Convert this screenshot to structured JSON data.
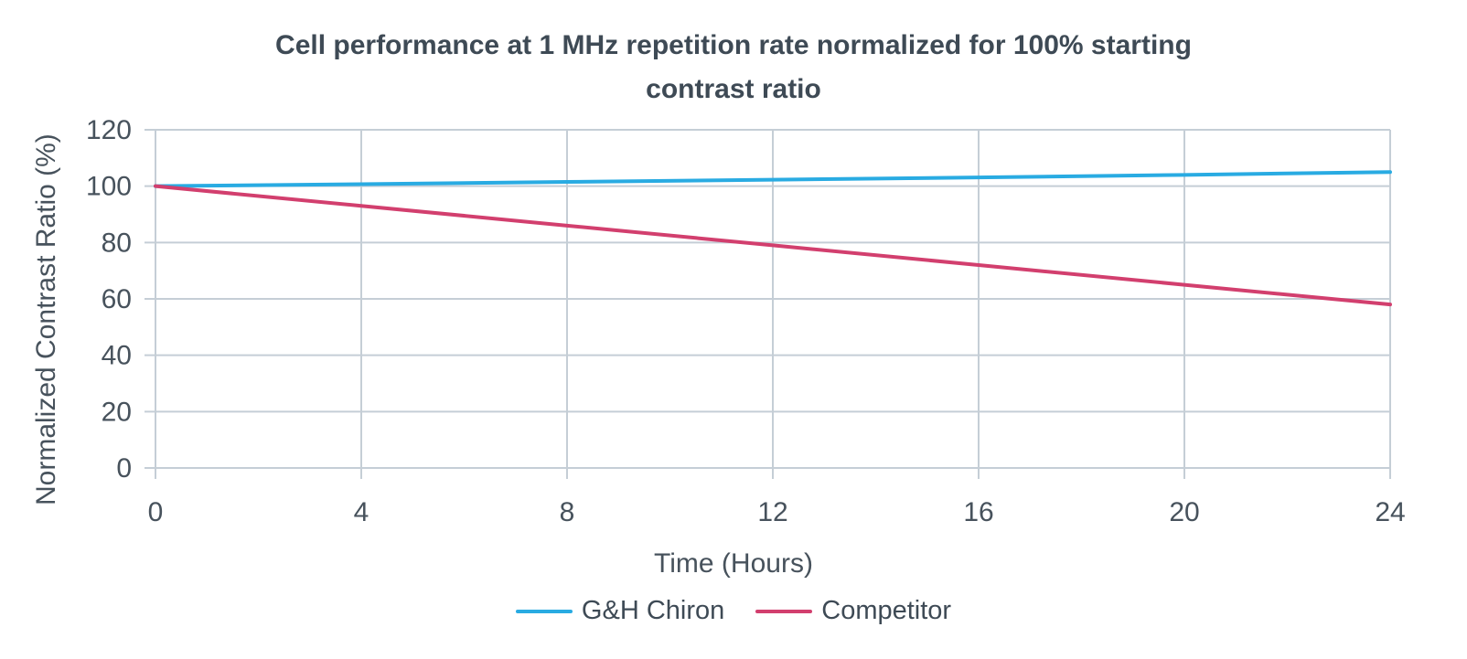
{
  "title": {
    "line1": "Cell performance at 1 MHz repetition rate normalized for 100% starting",
    "line2": "contrast ratio"
  },
  "chart_data": {
    "type": "line",
    "x": [
      0,
      4,
      8,
      12,
      16,
      20,
      24
    ],
    "series": [
      {
        "name": "G&H Chiron",
        "color": "#29abe2",
        "values": [
          100,
          100.7,
          101.5,
          102.3,
          103.1,
          104,
          105
        ]
      },
      {
        "name": "Competitor",
        "color": "#d23f6e",
        "values": [
          100,
          93,
          86,
          79,
          72,
          65,
          58
        ]
      }
    ],
    "xlabel": "Time (Hours)",
    "ylabel": "Normalized Contrast Ratio (%)",
    "xlim": [
      0,
      24
    ],
    "ylim": [
      0,
      120
    ],
    "xticks": [
      0,
      4,
      8,
      12,
      16,
      20,
      24
    ],
    "yticks": [
      0,
      20,
      40,
      60,
      80,
      100,
      120
    ],
    "grid": true,
    "legend_position": "bottom",
    "colors": {
      "grid": "#c5ced6",
      "text": "#47525c",
      "title": "#3e4a55"
    }
  }
}
